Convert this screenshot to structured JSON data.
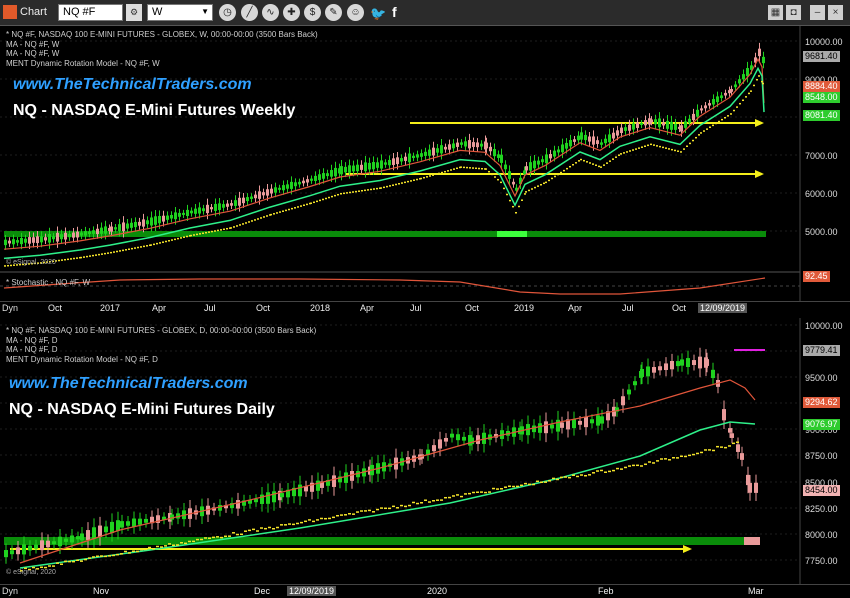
{
  "toolbar": {
    "app_label": "Chart",
    "symbol": "NQ #F",
    "interval": "W"
  },
  "weekly": {
    "header": [
      "* NQ #F, NASDAQ 100 E-MINI FUTURES - GLOBEX, W, 00:00-00:00 (3500 Bars Back)",
      "MA - NQ #F, W",
      "MA - NQ #F, W",
      "MENT Dynamic Rotation Model - NQ #F, W"
    ],
    "site": "www.TheTechnicalTraders.com",
    "title": "NQ - NASDAQ E-Mini Futures Weekly",
    "footer": "© eSignal, 2020",
    "sub_header": "* Stochastic - NQ #F, W",
    "y_ticks": [
      "10000.00",
      "9000.00",
      "8000.00",
      "7000.00",
      "6000.00",
      "5000.00"
    ],
    "price_labels": [
      {
        "text": "9681.40",
        "color": "#aaaaaa"
      },
      {
        "text": "8884.40",
        "color": "#e05a3a"
      },
      {
        "text": "8548.00",
        "color": "#2ecc2e"
      },
      {
        "text": "8081.40",
        "color": "#2ecc2e"
      }
    ],
    "stoch_label": "92.45",
    "x_dyn": "Dyn",
    "x_labels": [
      "Oct",
      "2017",
      "Apr",
      "Jul",
      "Oct",
      "2018",
      "Apr",
      "Jul",
      "Oct",
      "2019",
      "Apr",
      "Jul",
      "Oct"
    ],
    "x_date": "12/09/2019"
  },
  "daily": {
    "header": [
      "* NQ #F, NASDAQ 100 E-MINI FUTURES - GLOBEX, D, 00:00-00:00 (3500 Bars Back)",
      "MA - NQ #F, D",
      "MA - NQ #F, D",
      "MENT Dynamic Rotation Model - NQ #F, D"
    ],
    "site": "www.TheTechnicalTraders.com",
    "title": "NQ - NASDAQ E-Mini Futures Daily",
    "footer": "© eSignal, 2020",
    "y_ticks": [
      "10000.00",
      "9750.00",
      "9500.00",
      "9250.00",
      "9000.00",
      "8750.00",
      "8500.00",
      "8250.00",
      "8000.00",
      "7750.00"
    ],
    "price_labels": [
      {
        "text": "9779.41",
        "color": "#aaaaaa"
      },
      {
        "text": "9294.62",
        "color": "#e05a3a"
      },
      {
        "text": "9076.97",
        "color": "#2ecc2e"
      },
      {
        "text": "8454.00",
        "color": "#f2b3b3"
      }
    ],
    "x_dyn": "Dyn",
    "x_labels": [
      "Nov",
      "Dec",
      "2020",
      "Feb",
      "Mar"
    ],
    "x_date": "12/09/2019"
  },
  "colors": {
    "up": "#1fd21f",
    "down": "#e99a9a",
    "ma_fast": "#e0553a",
    "ma_slow": "#2ef08a",
    "dots": "#f4e32a",
    "band": "#0a8c0a",
    "arrow": "#f4ee1a",
    "site": "#2fa0ff"
  }
}
